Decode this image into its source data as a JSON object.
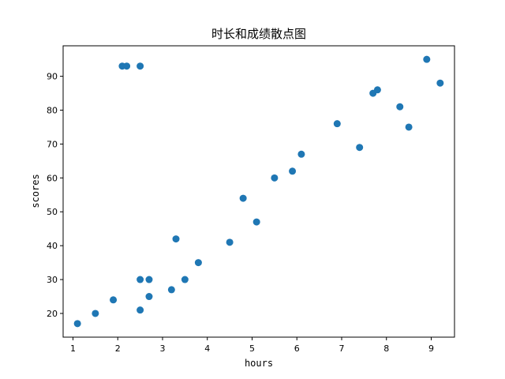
{
  "chart_data": {
    "type": "scatter",
    "title": "时长和成绩散点图",
    "xlabel": "hours",
    "ylabel": "scores",
    "xlim": [
      0.78,
      9.52
    ],
    "ylim": [
      13.0,
      99.0
    ],
    "xticks": [
      1,
      2,
      3,
      4,
      5,
      6,
      7,
      8,
      9
    ],
    "yticks": [
      20,
      30,
      40,
      50,
      60,
      70,
      80,
      90
    ],
    "grid": false,
    "legend": "none",
    "series": [
      {
        "color": "#1f77b4",
        "points": [
          {
            "x": 1.1,
            "y": 17
          },
          {
            "x": 1.5,
            "y": 20
          },
          {
            "x": 1.9,
            "y": 24
          },
          {
            "x": 2.1,
            "y": 93
          },
          {
            "x": 2.2,
            "y": 93
          },
          {
            "x": 2.5,
            "y": 93
          },
          {
            "x": 2.5,
            "y": 30
          },
          {
            "x": 2.5,
            "y": 21
          },
          {
            "x": 2.7,
            "y": 30
          },
          {
            "x": 2.7,
            "y": 25
          },
          {
            "x": 3.2,
            "y": 27
          },
          {
            "x": 3.3,
            "y": 42
          },
          {
            "x": 3.5,
            "y": 30
          },
          {
            "x": 3.8,
            "y": 35
          },
          {
            "x": 4.5,
            "y": 41
          },
          {
            "x": 4.8,
            "y": 54
          },
          {
            "x": 5.1,
            "y": 47
          },
          {
            "x": 5.5,
            "y": 60
          },
          {
            "x": 5.9,
            "y": 62
          },
          {
            "x": 6.1,
            "y": 67
          },
          {
            "x": 6.9,
            "y": 76
          },
          {
            "x": 7.4,
            "y": 69
          },
          {
            "x": 7.7,
            "y": 85
          },
          {
            "x": 7.8,
            "y": 86
          },
          {
            "x": 8.3,
            "y": 81
          },
          {
            "x": 8.5,
            "y": 75
          },
          {
            "x": 8.9,
            "y": 95
          },
          {
            "x": 9.2,
            "y": 88
          }
        ]
      }
    ]
  }
}
